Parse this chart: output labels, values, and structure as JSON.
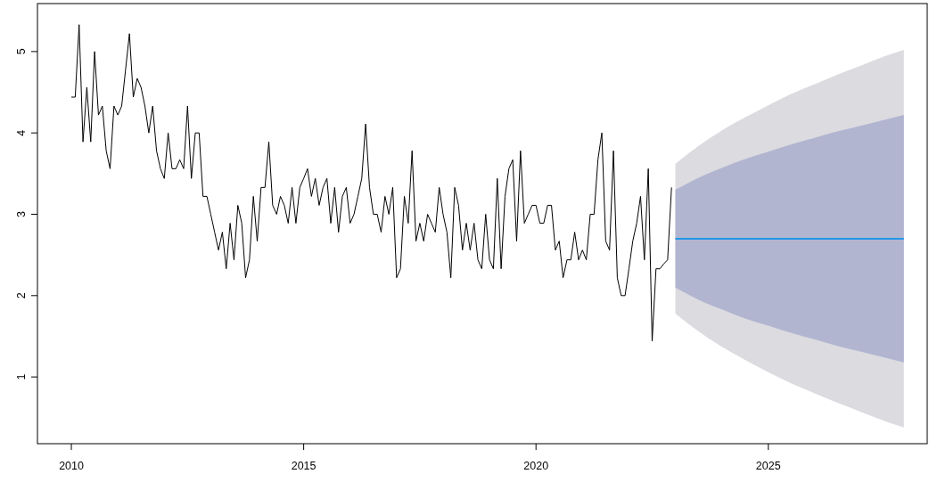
{
  "chart_data": {
    "type": "line",
    "xlim": [
      2009.27,
      2028.42
    ],
    "ylim": [
      0.18,
      5.59
    ],
    "xticks": [
      2010,
      2015,
      2020,
      2025
    ],
    "yticks": [
      1,
      2,
      3,
      4,
      5
    ],
    "grid": false,
    "series": [
      {
        "color": "#000000",
        "x": [
          2010,
          2010.083,
          2010.167,
          2010.25,
          2010.333,
          2010.417,
          2010.5,
          2010.583,
          2010.667,
          2010.75,
          2010.833,
          2010.917,
          2011,
          2011.083,
          2011.167,
          2011.25,
          2011.333,
          2011.417,
          2011.5,
          2011.583,
          2011.667,
          2011.75,
          2011.833,
          2011.917,
          2012,
          2012.083,
          2012.167,
          2012.25,
          2012.333,
          2012.417,
          2012.5,
          2012.583,
          2012.667,
          2012.75,
          2012.833,
          2012.917,
          2013,
          2013.083,
          2013.167,
          2013.25,
          2013.333,
          2013.417,
          2013.5,
          2013.583,
          2013.667,
          2013.75,
          2013.833,
          2013.917,
          2014,
          2014.083,
          2014.167,
          2014.25,
          2014.333,
          2014.417,
          2014.5,
          2014.583,
          2014.667,
          2014.75,
          2014.833,
          2014.917,
          2015,
          2015.083,
          2015.167,
          2015.25,
          2015.333,
          2015.417,
          2015.5,
          2015.583,
          2015.667,
          2015.75,
          2015.833,
          2015.917,
          2016,
          2016.083,
          2016.167,
          2016.25,
          2016.333,
          2016.417,
          2016.5,
          2016.583,
          2016.667,
          2016.75,
          2016.833,
          2016.917,
          2017,
          2017.083,
          2017.167,
          2017.25,
          2017.333,
          2017.417,
          2017.5,
          2017.583,
          2017.667,
          2017.75,
          2017.833,
          2017.917,
          2018,
          2018.083,
          2018.167,
          2018.25,
          2018.333,
          2018.417,
          2018.5,
          2018.583,
          2018.667,
          2018.75,
          2018.833,
          2018.917,
          2019,
          2019.083,
          2019.167,
          2019.25,
          2019.333,
          2019.417,
          2019.5,
          2019.583,
          2019.667,
          2019.75,
          2019.833,
          2019.917,
          2020,
          2020.083,
          2020.167,
          2020.25,
          2020.333,
          2020.417,
          2020.5,
          2020.583,
          2020.667,
          2020.75,
          2020.833,
          2020.917,
          2021,
          2021.083,
          2021.167,
          2021.25,
          2021.333,
          2021.417,
          2021.5,
          2021.583,
          2021.667,
          2021.75,
          2021.833,
          2021.917,
          2022,
          2022.083,
          2022.167,
          2022.25,
          2022.333,
          2022.417,
          2022.5,
          2022.583,
          2022.667,
          2022.75,
          2022.833,
          2022.917
        ],
        "values": [
          4.44,
          4.44,
          5.33,
          3.89,
          4.56,
          3.89,
          5.0,
          4.22,
          4.33,
          3.78,
          3.56,
          4.33,
          4.22,
          4.33,
          4.78,
          5.22,
          4.44,
          4.67,
          4.56,
          4.33,
          4.0,
          4.33,
          3.78,
          3.56,
          3.44,
          4.0,
          3.56,
          3.56,
          3.67,
          3.56,
          4.33,
          3.44,
          4.0,
          4.0,
          3.22,
          3.22,
          3.0,
          2.78,
          2.56,
          2.78,
          2.33,
          2.89,
          2.44,
          3.11,
          2.89,
          2.22,
          2.44,
          3.22,
          2.67,
          3.33,
          3.33,
          3.89,
          3.11,
          3.0,
          3.22,
          3.11,
          2.89,
          3.33,
          2.89,
          3.33,
          3.44,
          3.56,
          3.22,
          3.44,
          3.11,
          3.33,
          3.44,
          2.89,
          3.33,
          2.78,
          3.22,
          3.33,
          2.89,
          3.0,
          3.22,
          3.44,
          4.11,
          3.33,
          3.0,
          3.0,
          2.78,
          3.22,
          3.0,
          3.33,
          2.22,
          2.33,
          3.22,
          2.89,
          3.78,
          2.67,
          2.89,
          2.67,
          3.0,
          2.89,
          2.78,
          3.33,
          3.0,
          2.78,
          2.22,
          3.33,
          3.11,
          2.56,
          2.89,
          2.56,
          2.89,
          2.44,
          2.33,
          3.0,
          2.44,
          2.33,
          3.44,
          2.33,
          3.22,
          3.56,
          3.67,
          2.67,
          3.78,
          2.89,
          3.0,
          3.11,
          3.11,
          2.89,
          2.89,
          3.11,
          3.11,
          2.56,
          2.67,
          2.22,
          2.44,
          2.44,
          2.78,
          2.44,
          2.56,
          2.44,
          3.0,
          3.0,
          3.67,
          4.0,
          2.67,
          2.56,
          3.78,
          2.22,
          2.0,
          2.0,
          2.33,
          2.67,
          2.89,
          3.22,
          2.44,
          3.56,
          1.44,
          2.33,
          2.33,
          2.39,
          2.44,
          3.33
        ]
      },
      {
        "color": "#dbdbe0",
        "x": [
          2023,
          2023.5,
          2024,
          2024.5,
          2025,
          2025.5,
          2026,
          2026.5,
          2027,
          2027.5,
          2027.917
        ],
        "values": [
          null,
          null,
          null,
          null,
          null,
          null,
          null,
          null,
          null,
          null,
          null
        ],
        "lower": [
          1.78,
          1.56,
          1.37,
          1.21,
          1.06,
          0.92,
          0.8,
          0.68,
          0.57,
          0.46,
          0.38
        ],
        "upper": [
          3.62,
          3.84,
          4.03,
          4.19,
          4.34,
          4.48,
          4.6,
          4.72,
          4.83,
          4.94,
          5.02
        ]
      },
      {
        "color": "#b1b5d0",
        "x": [
          2023,
          2023.5,
          2024,
          2024.5,
          2025,
          2025.5,
          2026,
          2026.5,
          2027,
          2027.5,
          2027.917
        ],
        "values": [
          null,
          null,
          null,
          null,
          null,
          null,
          null,
          null,
          null,
          null,
          null
        ],
        "lower": [
          2.1,
          1.95,
          1.83,
          1.72,
          1.63,
          1.54,
          1.46,
          1.38,
          1.31,
          1.24,
          1.18
        ],
        "upper": [
          3.3,
          3.45,
          3.57,
          3.68,
          3.77,
          3.86,
          3.94,
          4.02,
          4.09,
          4.16,
          4.22
        ]
      },
      {
        "color": "#2297e6",
        "x": [
          2023,
          2023.5,
          2024,
          2024.5,
          2025,
          2025.5,
          2026,
          2026.5,
          2027,
          2027.5,
          2027.917
        ],
        "values": [
          2.7,
          2.7,
          2.7,
          2.7,
          2.7,
          2.7,
          2.7,
          2.7,
          2.7,
          2.7,
          2.7
        ]
      }
    ]
  }
}
